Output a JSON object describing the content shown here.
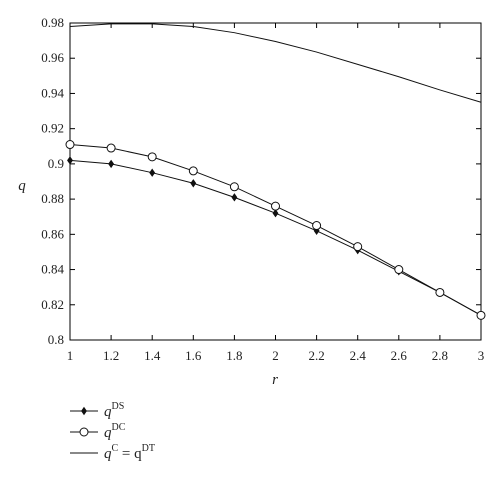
{
  "chart_data": {
    "type": "line",
    "xlabel": "r",
    "ylabel": "q",
    "xlim": [
      1,
      3
    ],
    "ylim": [
      0.8,
      0.98
    ],
    "x_ticks": [
      "1",
      "1.2",
      "1.4",
      "1.6",
      "1.8",
      "2",
      "2.2",
      "2.4",
      "2.6",
      "2.8",
      "3"
    ],
    "y_ticks": [
      "0.8",
      "0.82",
      "0.84",
      "0.86",
      "0.88",
      "0.9",
      "0.92",
      "0.94",
      "0.96",
      "0.98"
    ],
    "grid": false,
    "legend_position": "bottom-left, below plot",
    "x": [
      1,
      1.2,
      1.4,
      1.6,
      1.8,
      2,
      2.2,
      2.4,
      2.6,
      2.8,
      3
    ],
    "series": [
      {
        "name": "q^DS",
        "legend_base": "q",
        "legend_sup": "DS",
        "marker": "diamond",
        "color": "#111111",
        "values": [
          0.902,
          0.9,
          0.895,
          0.889,
          0.881,
          0.872,
          0.862,
          0.851,
          0.839,
          0.827,
          0.814
        ]
      },
      {
        "name": "q^DC",
        "legend_base": "q",
        "legend_sup": "DC",
        "marker": "circle",
        "color": "#111111",
        "values": [
          0.911,
          0.909,
          0.904,
          0.896,
          0.887,
          0.876,
          0.865,
          0.853,
          0.84,
          0.827,
          0.814
        ]
      },
      {
        "name": "q^C = q^DT",
        "legend_base": "q",
        "legend_sup": "C",
        "legend_mid": " = q",
        "legend_sup2": "DT",
        "marker": "none",
        "color": "#111111",
        "values": [
          0.978,
          0.9795,
          0.9795,
          0.978,
          0.9745,
          0.9695,
          0.9635,
          0.9565,
          0.9495,
          0.942,
          0.935
        ]
      }
    ]
  }
}
